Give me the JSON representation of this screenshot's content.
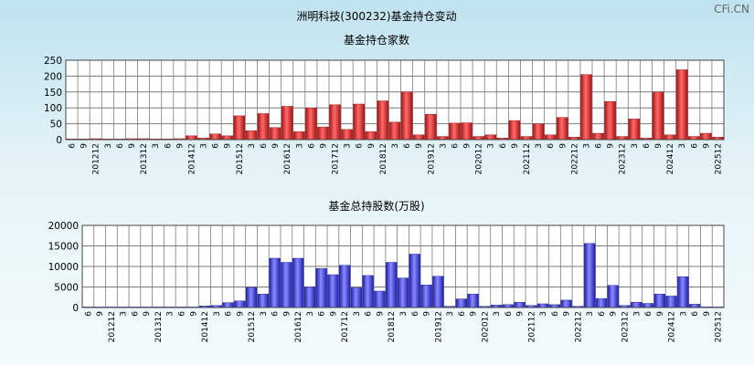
{
  "page_title": "洲明科技(300232)基金持仓变动",
  "watermark": "CFi.CN",
  "colors": {
    "red": "#dd2222",
    "blue": "#3a3ae8",
    "grid": "#7a7a7a"
  },
  "chart_data": [
    {
      "type": "bar",
      "title": "基金持仓家数",
      "xlabel": "",
      "ylabel": "",
      "ylim": [
        0,
        250
      ],
      "yticks": [
        0,
        50,
        100,
        150,
        200,
        250
      ],
      "grid": true,
      "categories": [
        "6",
        "9",
        "201212",
        "3",
        "6",
        "9",
        "201312",
        "3",
        "6",
        "9",
        "201412",
        "3",
        "6",
        "9",
        "201512",
        "3",
        "6",
        "9",
        "201612",
        "3",
        "6",
        "9",
        "201712",
        "3",
        "6",
        "9",
        "201812",
        "3",
        "6",
        "9",
        "201912",
        "3",
        "6",
        "9",
        "202012",
        "3",
        "6",
        "9",
        "202112",
        "3",
        "6",
        "9",
        "202212",
        "3",
        "6",
        "9",
        "202312",
        "3",
        "6",
        "9",
        "202412",
        "3",
        "6",
        "9",
        "202512"
      ],
      "values": [
        2,
        2,
        3,
        2,
        2,
        3,
        3,
        2,
        2,
        3,
        12,
        5,
        18,
        12,
        75,
        28,
        82,
        38,
        105,
        25,
        100,
        40,
        110,
        32,
        112,
        25,
        122,
        55,
        150,
        15,
        80,
        10,
        52,
        53,
        10,
        15,
        5,
        60,
        10,
        50,
        15,
        70,
        8,
        205,
        20,
        120,
        10,
        65,
        5,
        150,
        15,
        220,
        10,
        20,
        8
      ]
    },
    {
      "type": "bar",
      "title": "基金总持股数(万股)",
      "xlabel": "",
      "ylabel": "",
      "ylim": [
        0,
        20000
      ],
      "yticks": [
        0,
        5000,
        10000,
        15000,
        20000
      ],
      "grid": true,
      "categories": [
        "6",
        "9",
        "201212",
        "3",
        "6",
        "9",
        "201312",
        "3",
        "6",
        "9",
        "201412",
        "3",
        "6",
        "9",
        "201512",
        "3",
        "6",
        "9",
        "201612",
        "3",
        "6",
        "9",
        "201712",
        "3",
        "6",
        "9",
        "201812",
        "3",
        "6",
        "9",
        "201912",
        "3",
        "6",
        "9",
        "202012",
        "3",
        "6",
        "9",
        "202112",
        "3",
        "6",
        "9",
        "202212",
        "3",
        "6",
        "9",
        "202312",
        "3",
        "6",
        "9",
        "202412",
        "3",
        "6",
        "9",
        "202512"
      ],
      "values": [
        50,
        60,
        80,
        60,
        60,
        70,
        80,
        60,
        70,
        90,
        400,
        500,
        1200,
        1600,
        4900,
        3300,
        12000,
        11000,
        12000,
        5000,
        9500,
        8000,
        10300,
        4800,
        7800,
        4000,
        11000,
        7200,
        13000,
        5500,
        7600,
        300,
        2100,
        3300,
        300,
        600,
        700,
        1300,
        500,
        900,
        700,
        1800,
        300,
        15600,
        2200,
        5400,
        500,
        1300,
        1000,
        3300,
        2800,
        7500,
        800,
        150,
        100
      ]
    }
  ]
}
